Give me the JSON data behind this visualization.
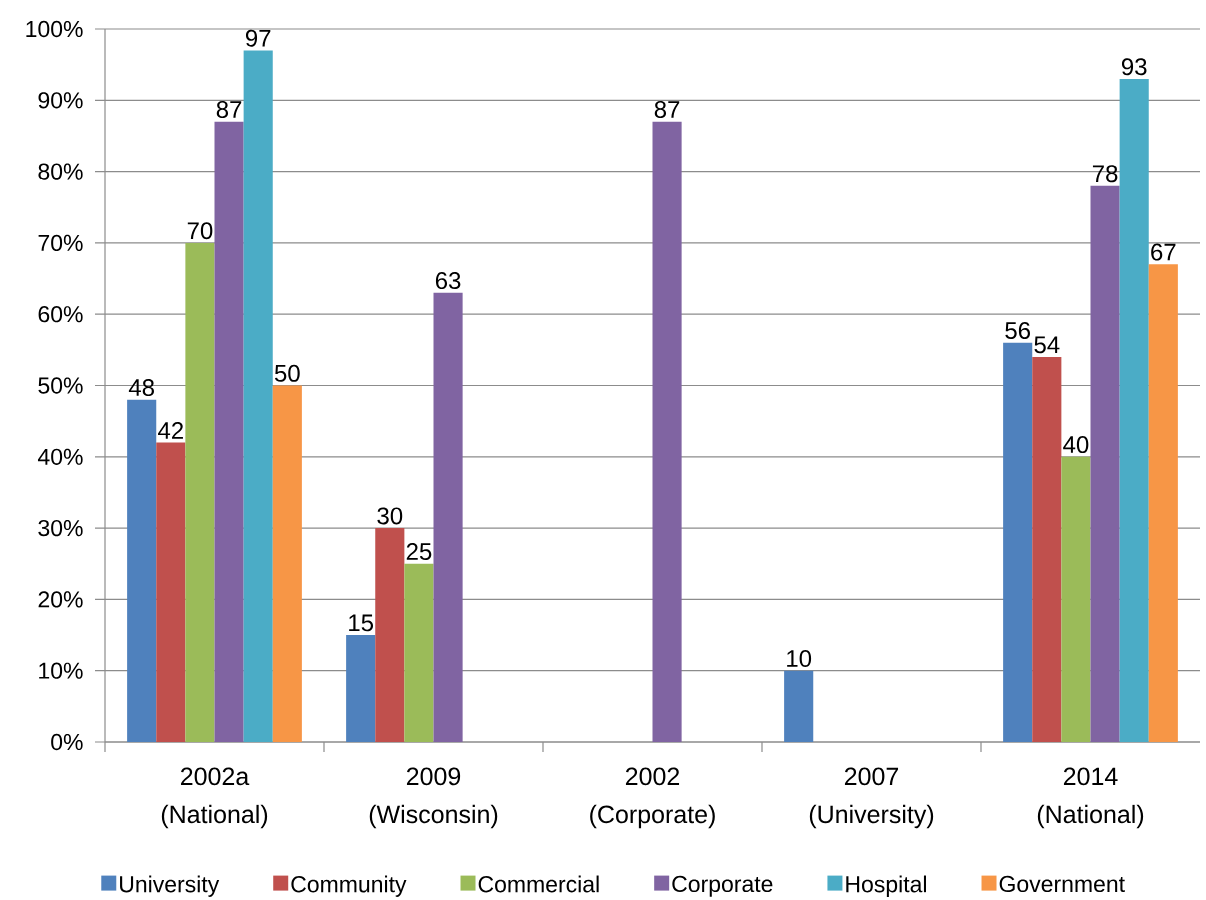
{
  "chart_data": {
    "type": "bar",
    "categories": [
      "2002a (National)",
      "2009 (Wisconsin)",
      "2002 (Corporate)",
      "2007 (University)",
      "2014 (National)"
    ],
    "series": [
      {
        "name": "University",
        "color": "#4f81bd",
        "values": [
          48,
          15,
          null,
          10,
          56
        ]
      },
      {
        "name": "Community",
        "color": "#c0504d",
        "values": [
          42,
          30,
          null,
          null,
          54
        ]
      },
      {
        "name": "Commercial",
        "color": "#9bbb59",
        "values": [
          70,
          25,
          null,
          null,
          40
        ]
      },
      {
        "name": "Corporate",
        "color": "#8064a2",
        "values": [
          87,
          63,
          87,
          null,
          78
        ]
      },
      {
        "name": "Hospital",
        "color": "#4bacc6",
        "values": [
          97,
          null,
          null,
          null,
          93
        ]
      },
      {
        "name": "Government",
        "color": "#f79646",
        "values": [
          50,
          null,
          null,
          null,
          67
        ]
      }
    ],
    "ylim": [
      0,
      100
    ],
    "yticks": [
      {
        "value": 0,
        "label": "0%"
      },
      {
        "value": 10,
        "label": "10%"
      },
      {
        "value": 20,
        "label": "20%"
      },
      {
        "value": 30,
        "label": "30%"
      },
      {
        "value": 40,
        "label": "40%"
      },
      {
        "value": 50,
        "label": "50%"
      },
      {
        "value": 60,
        "label": "60%"
      },
      {
        "value": 70,
        "label": "70%"
      },
      {
        "value": 80,
        "label": "80%"
      },
      {
        "value": 90,
        "label": "90%"
      },
      {
        "value": 100,
        "label": "100%"
      }
    ],
    "grid": "y",
    "legend": "bottom",
    "data_labels": true
  }
}
